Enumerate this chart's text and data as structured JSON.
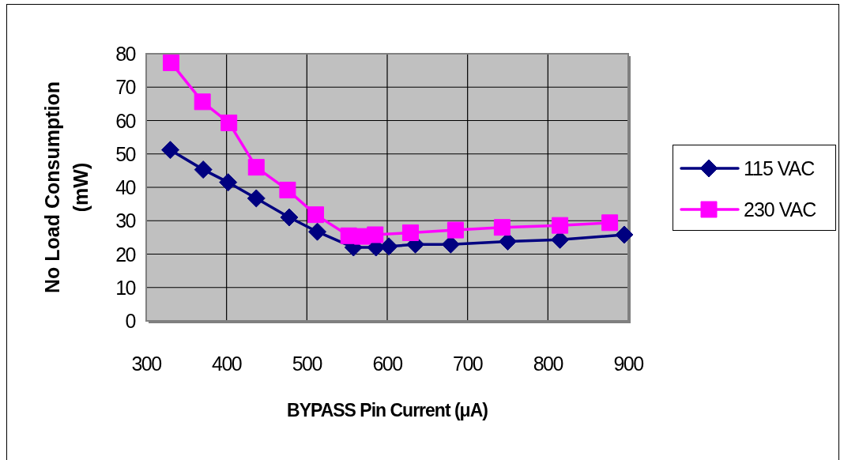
{
  "chart_data": {
    "type": "line",
    "xlabel": "BYPASS Pin Current (μA)",
    "ylabel": "No Load Consumption\n(mW)",
    "xlim": [
      300,
      900
    ],
    "xticks": [
      300,
      400,
      500,
      600,
      700,
      800,
      900
    ],
    "ylim": [
      0,
      80
    ],
    "yticks": [
      0,
      10,
      20,
      30,
      40,
      50,
      60,
      70,
      80
    ],
    "grid": true,
    "legend": "right",
    "line_style": "solid",
    "series": [
      {
        "name": "115 VAC",
        "color": "#000080",
        "marker": "diamond",
        "x": [
          330,
          371,
          402,
          437,
          478,
          513,
          558,
          586,
          602,
          635,
          679,
          750,
          815,
          895
        ],
        "values": [
          51.2,
          45.3,
          41.5,
          36.7,
          31,
          26.7,
          22,
          22,
          22.3,
          22.9,
          22.9,
          23.8,
          24.3,
          25.8
        ]
      },
      {
        "name": "230 VAC",
        "color": "#ff00ff",
        "marker": "square",
        "x": [
          331,
          370,
          403,
          437,
          476,
          511,
          552,
          569,
          585,
          629,
          685,
          743,
          815,
          877
        ],
        "values": [
          77.3,
          65.6,
          59.3,
          46,
          39.2,
          31.8,
          25.5,
          25.3,
          25.8,
          26.4,
          27.2,
          28,
          28.6,
          29.4
        ]
      }
    ]
  }
}
